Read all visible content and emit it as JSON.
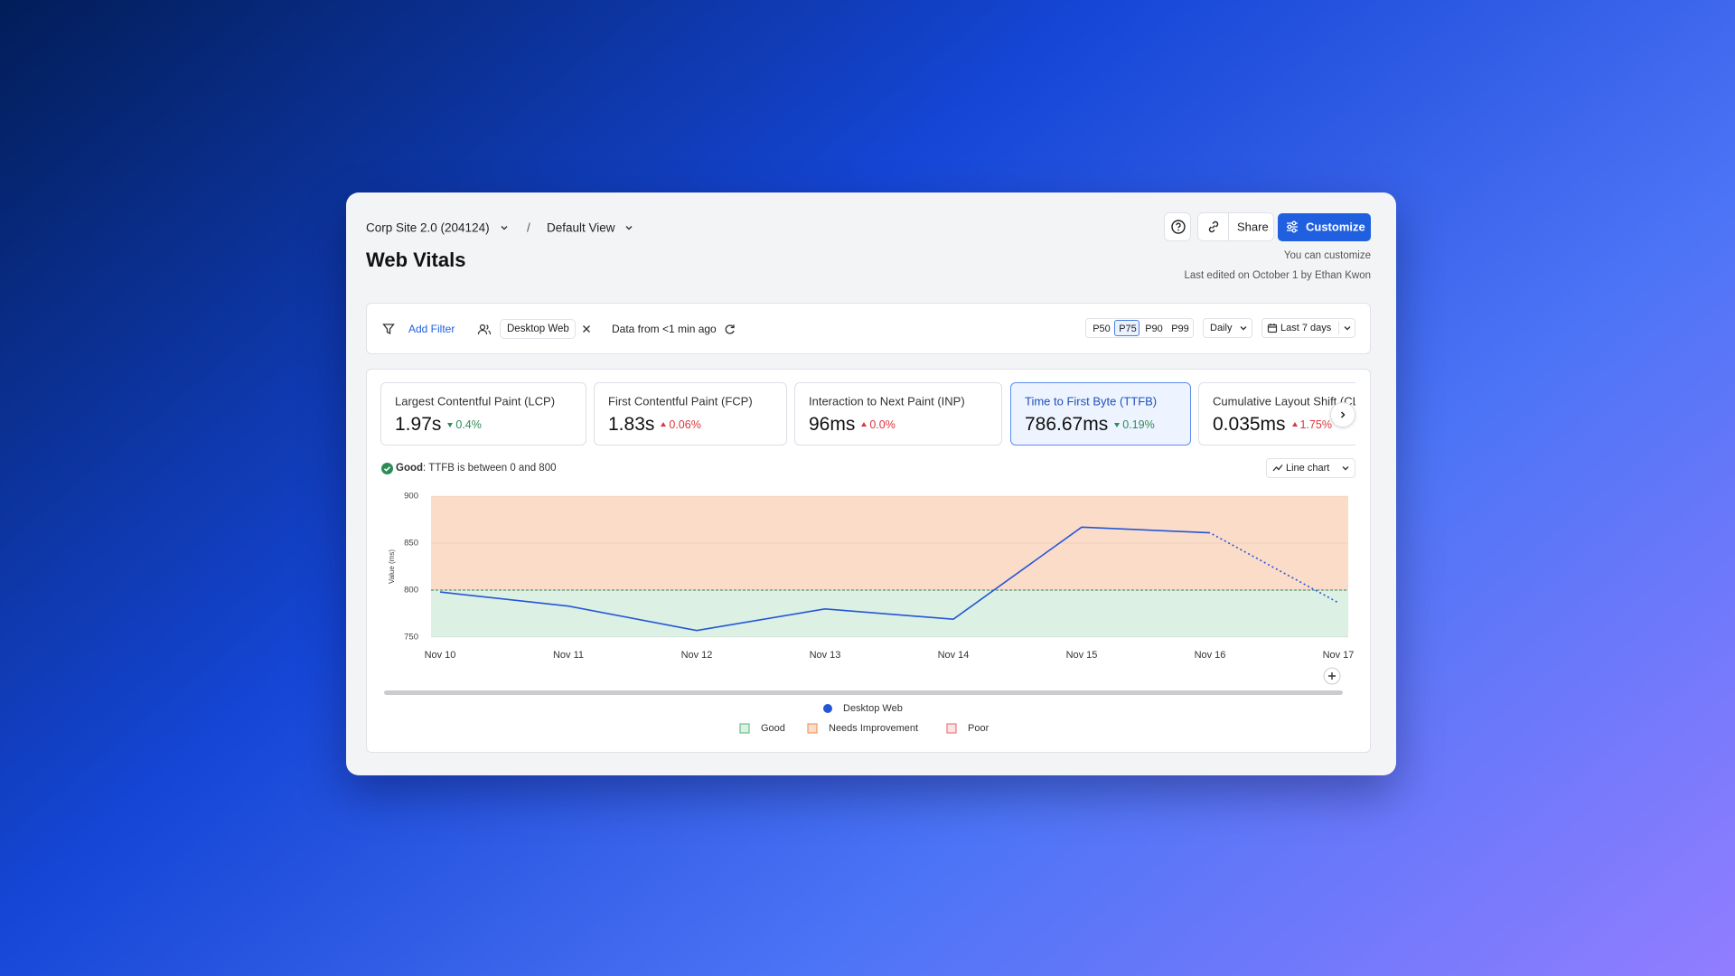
{
  "header": {
    "project": "Corp Site 2.0 (204124)",
    "separator": "/",
    "view": "Default View",
    "title": "Web Vitals",
    "share": "Share",
    "customize": "Customize",
    "permission": "You can customize",
    "last_edited": "Last edited on October 1 by Ethan Kwon"
  },
  "filters": {
    "add": "Add Filter",
    "segment": "Desktop Web",
    "freshness": "Data from <1 min ago",
    "percentiles": [
      "P50",
      "P75",
      "P90",
      "P99"
    ],
    "selected_percentile": 1,
    "granularity": "Daily",
    "range": "Last 7 days"
  },
  "metrics": [
    {
      "label": "Largest Contentful Paint (LCP)",
      "value": "1.97s",
      "change": "0.4%",
      "trend": "down",
      "good": true
    },
    {
      "label": "First Contentful Paint (FCP)",
      "value": "1.83s",
      "change": "0.06%",
      "trend": "up",
      "good": false
    },
    {
      "label": "Interaction to Next Paint (INP)",
      "value": "96ms",
      "change": "0.0%",
      "trend": "up",
      "good": false
    },
    {
      "label": "Time to First Byte (TTFB)",
      "value": "786.67ms",
      "change": "0.19%",
      "trend": "down",
      "good": true
    },
    {
      "label": "Cumulative Layout Shift (CLS)",
      "value": "0.035ms",
      "change": "1.75%",
      "trend": "up",
      "good": false
    }
  ],
  "selected_metric": 3,
  "status": {
    "label": "Good",
    "text": ": TTFB is between 0 and 800"
  },
  "chart_type": "Line chart",
  "chart": {
    "type": "line",
    "y_label": "Value (ms)",
    "categories": [
      "Nov 10",
      "Nov 11",
      "Nov 12",
      "Nov 13",
      "Nov 14",
      "Nov 15",
      "Nov 16",
      "Nov 17"
    ],
    "series": [
      {
        "name": "Desktop Web",
        "color": "#2456d6",
        "values": [
          798,
          783,
          757,
          780,
          769,
          867,
          861,
          786.67
        ]
      }
    ],
    "ylim": [
      750,
      900
    ],
    "yticks": [
      750,
      800,
      850,
      900
    ],
    "threshold": 800,
    "dotted_last_segment": true,
    "bands": [
      {
        "name": "Good",
        "color": "#dcf0e4",
        "edge": "#6cbf8c"
      },
      {
        "name": "Needs Improvement",
        "color": "#fbdcc9",
        "edge": "#ee9a62"
      },
      {
        "name": "Poor",
        "color": "#fde3e3",
        "edge": "#e57b7b"
      }
    ]
  }
}
